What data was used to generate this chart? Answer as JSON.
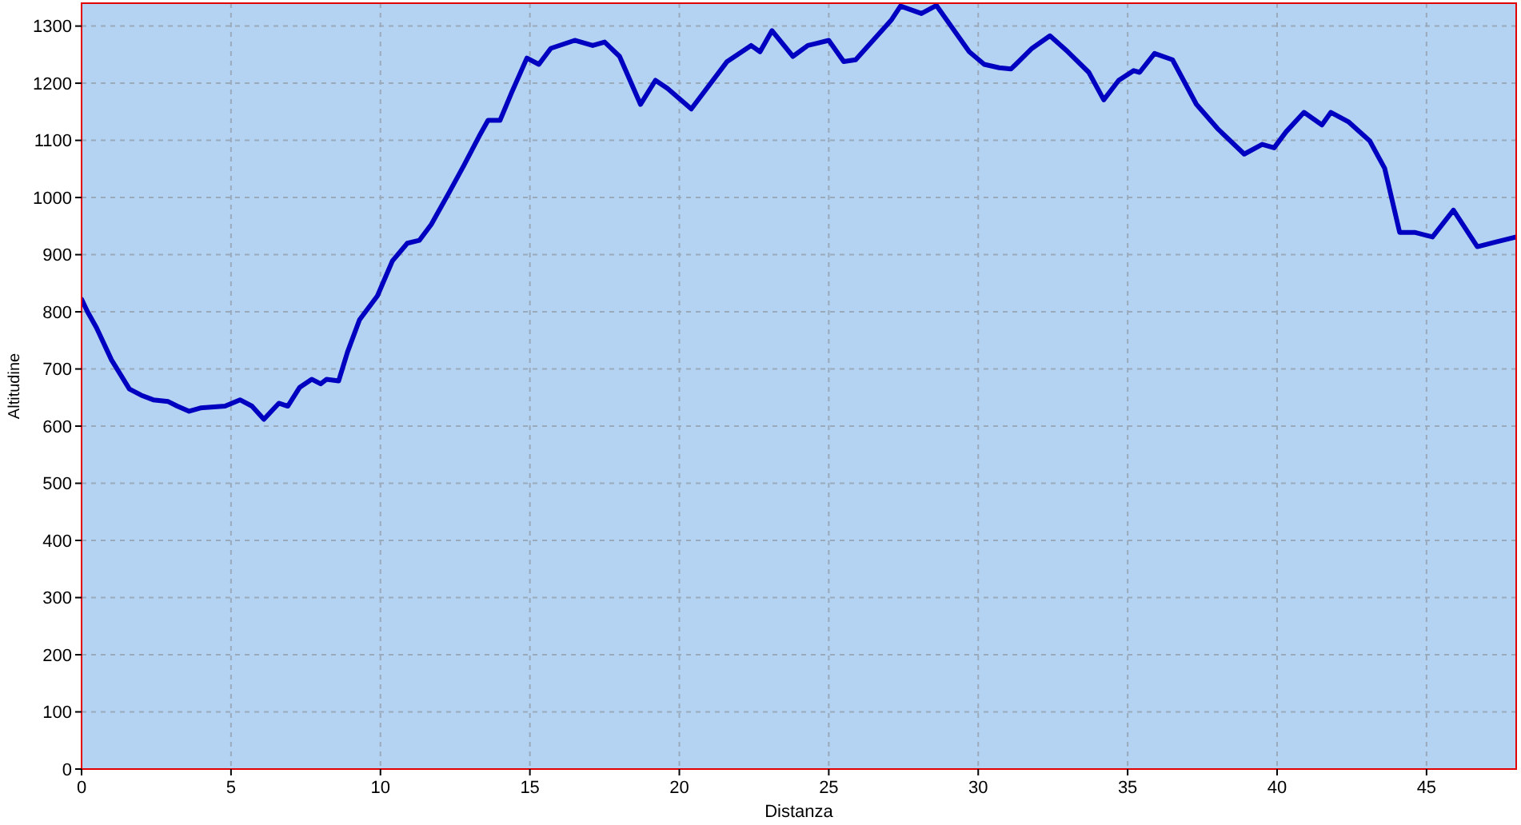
{
  "chart_data": {
    "type": "line",
    "xlabel": "Distanza",
    "ylabel": "Altitudine",
    "xlim": [
      0,
      48
    ],
    "ylim": [
      0,
      1340
    ],
    "xticks": [
      0,
      5,
      10,
      15,
      20,
      25,
      30,
      35,
      40,
      45
    ],
    "yticks": [
      0,
      100,
      200,
      300,
      400,
      500,
      600,
      700,
      800,
      900,
      1000,
      1100,
      1200,
      1300
    ],
    "grid": true,
    "line_style": "solid",
    "marker": "none",
    "series": [
      {
        "color": "#0000c0",
        "x": [
          0,
          0.2,
          0.5,
          1.0,
          1.6,
          2.0,
          2.4,
          2.9,
          3.2,
          3.6,
          4.0,
          4.8,
          5.3,
          5.7,
          6.1,
          6.6,
          6.9,
          7.3,
          7.7,
          8.0,
          8.2,
          8.6,
          8.9,
          9.3,
          9.9,
          10.4,
          10.9,
          11.3,
          11.7,
          12.3,
          12.8,
          13.3,
          13.6,
          14.0,
          14.4,
          14.9,
          15.3,
          15.7,
          16.5,
          17.1,
          17.5,
          18.0,
          18.7,
          19.2,
          19.6,
          20.4,
          21.6,
          22.4,
          22.7,
          23.1,
          23.8,
          24.3,
          25.0,
          25.5,
          25.9,
          27.1,
          27.4,
          28.1,
          28.6,
          29.7,
          30.2,
          30.7,
          31.1,
          31.8,
          32.4,
          33.0,
          33.7,
          34.2,
          34.7,
          35.2,
          35.4,
          35.9,
          36.5,
          37.3,
          38.0,
          38.9,
          39.5,
          39.9,
          40.3,
          40.9,
          41.5,
          41.8,
          42.4,
          43.1,
          43.6,
          44.1,
          44.6,
          45.2,
          45.9,
          46.7,
          47.3,
          48.0
        ],
        "values": [
          822,
          800,
          772,
          716,
          665,
          654,
          646,
          643,
          635,
          626,
          632,
          635,
          646,
          635,
          612,
          640,
          635,
          668,
          682,
          674,
          682,
          679,
          730,
          786,
          828,
          889,
          920,
          925,
          953,
          1009,
          1057,
          1107,
          1135,
          1135,
          1185,
          1244,
          1233,
          1261,
          1275,
          1266,
          1272,
          1247,
          1163,
          1205,
          1191,
          1155,
          1238,
          1266,
          1255,
          1292,
          1247,
          1266,
          1275,
          1238,
          1241,
          1311,
          1335,
          1322,
          1336,
          1255,
          1233,
          1227,
          1225,
          1261,
          1283,
          1255,
          1219,
          1171,
          1205,
          1222,
          1219,
          1252,
          1241,
          1163,
          1121,
          1076,
          1093,
          1087,
          1115,
          1149,
          1127,
          1149,
          1132,
          1099,
          1051,
          939,
          939,
          931,
          978,
          914,
          922,
          931
        ]
      }
    ]
  }
}
